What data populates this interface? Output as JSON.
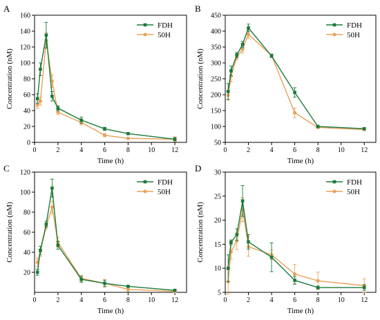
{
  "figure": {
    "colors": {
      "FDH": "#1b7a3a",
      "50H": "#e8a25a"
    }
  },
  "chart_data": [
    {
      "panel": "A",
      "type": "line",
      "xlabel": "Time (h)",
      "ylabel": "Concentration (nM)",
      "xlim": [
        0,
        13
      ],
      "ylim": [
        0,
        160
      ],
      "xticks": [
        0,
        2,
        4,
        6,
        8,
        10,
        12
      ],
      "yticks": [
        0,
        20,
        40,
        60,
        80,
        100,
        120,
        140,
        160
      ],
      "legend_position": "top-right",
      "series": [
        {
          "name": "FDH",
          "color": "#1b7a3a",
          "marker": "square",
          "x": [
            0.25,
            0.5,
            1,
            1.5,
            2,
            4,
            6,
            8,
            12
          ],
          "y": [
            55,
            92,
            135,
            58,
            43,
            28,
            17,
            11,
            4
          ],
          "err": [
            6,
            8,
            16,
            6,
            3,
            4,
            2,
            1,
            2
          ]
        },
        {
          "name": "50H",
          "color": "#e8a25a",
          "marker": "circle",
          "x": [
            0.25,
            0.5,
            1,
            1.5,
            2,
            4,
            6,
            8,
            12
          ],
          "y": [
            47,
            52,
            128,
            77,
            38,
            25,
            9,
            5,
            4
          ],
          "err": [
            4,
            5,
            10,
            8,
            3,
            3,
            2,
            1,
            3
          ]
        }
      ]
    },
    {
      "panel": "B",
      "type": "line",
      "xlabel": "Time (h)",
      "ylabel": "Concentration (nM)",
      "xlim": [
        0,
        13
      ],
      "ylim": [
        50,
        450
      ],
      "xticks": [
        0,
        2,
        4,
        6,
        8,
        10,
        12
      ],
      "yticks": [
        50,
        100,
        150,
        200,
        250,
        300,
        350,
        400,
        450
      ],
      "legend_position": "top-right",
      "series": [
        {
          "name": "FDH",
          "color": "#1b7a3a",
          "marker": "square",
          "x": [
            0.25,
            0.5,
            1,
            1.5,
            2,
            4,
            6,
            8,
            12
          ],
          "y": [
            210,
            275,
            325,
            358,
            410,
            322,
            207,
            100,
            93
          ],
          "err": [
            25,
            15,
            8,
            10,
            12,
            5,
            15,
            3,
            3
          ]
        },
        {
          "name": "50H",
          "color": "#e8a25a",
          "marker": "circle",
          "x": [
            0.25,
            0.5,
            1,
            1.5,
            2,
            4,
            6,
            8,
            12
          ],
          "y": [
            198,
            258,
            318,
            343,
            390,
            323,
            143,
            97,
            90
          ],
          "err": [
            15,
            18,
            8,
            12,
            12,
            5,
            15,
            3,
            3
          ]
        }
      ]
    },
    {
      "panel": "C",
      "type": "line",
      "xlabel": "Time (h)",
      "ylabel": "Concentration (nM)",
      "xlim": [
        0,
        13
      ],
      "ylim": [
        0,
        120
      ],
      "xticks": [
        0,
        2,
        4,
        6,
        8,
        10,
        12
      ],
      "yticks": [
        20,
        40,
        60,
        80,
        100,
        120
      ],
      "legend_position": "top-right",
      "series": [
        {
          "name": "FDH",
          "color": "#1b7a3a",
          "marker": "square",
          "x": [
            0.25,
            0.5,
            1,
            1.5,
            2,
            4,
            6,
            8,
            12
          ],
          "y": [
            20,
            42,
            68,
            104,
            47,
            13,
            9,
            6,
            2
          ],
          "err": [
            3,
            4,
            3,
            9,
            4,
            3,
            3,
            1,
            1
          ]
        },
        {
          "name": "50H",
          "color": "#e8a25a",
          "marker": "circle",
          "x": [
            0.25,
            0.5,
            1,
            1.5,
            2,
            4,
            6,
            8,
            12
          ],
          "y": [
            30,
            41,
            66,
            85,
            50,
            14,
            9,
            3,
            1
          ],
          "err": [
            4,
            5,
            3,
            6,
            5,
            3,
            4,
            2,
            1
          ]
        }
      ]
    },
    {
      "panel": "D",
      "type": "line",
      "xlabel": "Time (h)",
      "ylabel": "Concentration (nM)",
      "xlim": [
        0,
        13
      ],
      "ylim": [
        5,
        30
      ],
      "xticks": [
        0,
        2,
        4,
        6,
        8,
        10,
        12
      ],
      "yticks": [
        5,
        10,
        15,
        20,
        25,
        30
      ],
      "legend_position": "top-right",
      "series": [
        {
          "name": "FDH",
          "color": "#1b7a3a",
          "marker": "square",
          "x": [
            0.25,
            0.5,
            1,
            1.5,
            2,
            4,
            6,
            8,
            12
          ],
          "y": [
            10,
            15.4,
            17,
            24,
            15.5,
            12.3,
            7.5,
            6,
            6
          ],
          "err": [
            2.8,
            0.5,
            1.2,
            3.2,
            1.5,
            3,
            0.8,
            0.3,
            0.6
          ]
        },
        {
          "name": "50H",
          "color": "#e8a25a",
          "marker": "circle",
          "x": [
            0.25,
            0.5,
            1,
            1.5,
            2,
            4,
            6,
            8,
            12
          ],
          "y": [
            7.2,
            13.4,
            15.7,
            22.2,
            14.5,
            12.8,
            8.8,
            7.4,
            6.4
          ],
          "err": [
            2.5,
            1.5,
            1.8,
            2.5,
            2,
            1,
            2,
            1.8,
            1.4
          ]
        }
      ]
    }
  ]
}
